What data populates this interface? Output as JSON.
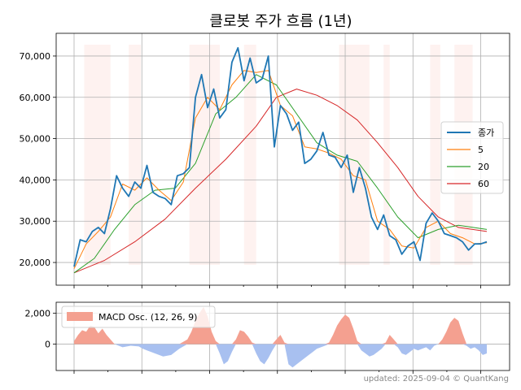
{
  "title": "클로봇 주가 흐름 (1년)",
  "footer": "updated: 2025-09-04 © QuantKang",
  "colors": {
    "close": "#1f77b4",
    "ma5": "#ff7f0e",
    "ma20": "#2ca02c",
    "ma60": "#d62728",
    "osc_pos": "#f4a090",
    "osc_neg": "#a8c0f0",
    "shade": "#fde8e4",
    "grid": "#b0b0b0"
  },
  "chart_data": [
    {
      "type": "line",
      "title": "클로봇 주가 흐름 (1년)",
      "ylim": [
        14500,
        75500
      ],
      "yticks": [
        20000,
        30000,
        40000,
        50000,
        60000,
        70000
      ],
      "ytick_labels": [
        "20,000",
        "30,000",
        "40,000",
        "50,000",
        "60,000",
        "70,000"
      ],
      "grid": true,
      "legend_position": "center-right",
      "shaded_x_ranges": [
        [
          5,
          18
        ],
        [
          27,
          33
        ],
        [
          57,
          72
        ],
        [
          84,
          90
        ],
        [
          131,
          146
        ],
        [
          153,
          156
        ],
        [
          176,
          181
        ],
        [
          188,
          197
        ]
      ],
      "series": [
        {
          "name": "종가",
          "key": "close",
          "x": [
            0,
            3,
            6,
            9,
            12,
            15,
            18,
            21,
            24,
            27,
            30,
            33,
            36,
            39,
            42,
            45,
            48,
            51,
            54,
            57,
            60,
            63,
            66,
            69,
            72,
            75,
            78,
            81,
            84,
            87,
            90,
            93,
            96,
            99,
            102,
            105,
            108,
            111,
            114,
            117,
            120,
            123,
            126,
            129,
            132,
            135,
            138,
            141,
            144,
            147,
            150,
            153,
            156,
            159,
            162,
            165,
            168,
            171,
            174,
            177,
            180,
            183,
            186,
            189,
            192,
            195,
            198,
            201,
            204
          ],
          "values": [
            19000,
            25500,
            25000,
            27500,
            28500,
            27000,
            33000,
            41000,
            38000,
            36000,
            39500,
            38000,
            43500,
            37000,
            36000,
            35500,
            34000,
            41000,
            41500,
            43000,
            60000,
            65500,
            57500,
            62000,
            55000,
            57000,
            68500,
            72000,
            64000,
            69500,
            63500,
            64500,
            70000,
            48000,
            58000,
            56000,
            52000,
            54000,
            44000,
            45000,
            47000,
            51500,
            46000,
            45500,
            43000,
            46000,
            37000,
            43000,
            38000,
            31000,
            28000,
            31500,
            26500,
            25500,
            22000,
            24000,
            25000,
            20500,
            29500,
            32000,
            30000,
            27000,
            26500,
            26000,
            25000,
            23000,
            24500,
            24500,
            25000
          ]
        },
        {
          "name": "5",
          "key": "ma5",
          "x": [
            0,
            6,
            12,
            18,
            24,
            30,
            36,
            42,
            48,
            54,
            60,
            66,
            72,
            78,
            84,
            90,
            96,
            102,
            108,
            114,
            120,
            126,
            132,
            138,
            144,
            150,
            156,
            162,
            168,
            174,
            180,
            186,
            192,
            198,
            204
          ],
          "values": [
            18500,
            24500,
            27500,
            31000,
            39000,
            37500,
            40500,
            37500,
            35000,
            39500,
            55000,
            60000,
            57000,
            63000,
            66500,
            66000,
            66500,
            58000,
            55500,
            48000,
            47500,
            46500,
            45000,
            41000,
            40000,
            30000,
            28000,
            24000,
            23500,
            28500,
            30000,
            27000,
            26000,
            24500,
            24800
          ]
        },
        {
          "name": "20",
          "key": "ma20",
          "x": [
            0,
            10,
            20,
            30,
            40,
            50,
            60,
            70,
            80,
            90,
            100,
            110,
            120,
            130,
            140,
            150,
            160,
            170,
            180,
            190,
            204
          ],
          "values": [
            17500,
            21000,
            28000,
            34000,
            37500,
            38000,
            44000,
            56000,
            60000,
            65500,
            63000,
            56000,
            49000,
            46000,
            44500,
            38000,
            31000,
            26000,
            28000,
            29000,
            28000
          ]
        },
        {
          "name": "60",
          "key": "ma60",
          "x": [
            0,
            15,
            30,
            45,
            60,
            75,
            90,
            100,
            110,
            120,
            130,
            140,
            150,
            160,
            170,
            180,
            190,
            204
          ],
          "values": [
            17500,
            20500,
            25000,
            30500,
            38000,
            45000,
            53000,
            60000,
            62000,
            60500,
            58000,
            54500,
            49000,
            43000,
            36000,
            31000,
            28500,
            27500
          ]
        }
      ]
    },
    {
      "type": "area",
      "ylim": [
        -1700,
        2700
      ],
      "yticks": [
        0,
        2000
      ],
      "ytick_labels": [
        "0",
        "2,000"
      ],
      "grid": true,
      "legend_position": "top-left",
      "series": [
        {
          "name": "MACD Osc. (12, 26, 9)",
          "key": "osc",
          "x": [
            0,
            2,
            4,
            6,
            8,
            10,
            12,
            14,
            16,
            18,
            20,
            24,
            28,
            32,
            34,
            36,
            40,
            44,
            48,
            52,
            56,
            58,
            60,
            62,
            64,
            66,
            68,
            70,
            72,
            74,
            76,
            78,
            80,
            82,
            84,
            86,
            88,
            90,
            92,
            94,
            96,
            98,
            100,
            102,
            104,
            106,
            108,
            110,
            112,
            114,
            116,
            118,
            120,
            122,
            124,
            126,
            128,
            130,
            132,
            134,
            136,
            138,
            140,
            142,
            144,
            146,
            148,
            150,
            152,
            154,
            156,
            158,
            160,
            162,
            164,
            166,
            168,
            170,
            172,
            174,
            176,
            178,
            180,
            182,
            184,
            186,
            188,
            190,
            192,
            194,
            196,
            198,
            200,
            202,
            204
          ],
          "values": [
            200,
            600,
            900,
            800,
            1200,
            1100,
            700,
            1000,
            600,
            300,
            0,
            -200,
            -100,
            -150,
            -300,
            -400,
            -600,
            -800,
            -700,
            -300,
            300,
            800,
            1500,
            2000,
            2400,
            1800,
            800,
            200,
            -600,
            -1300,
            -1100,
            -500,
            300,
            900,
            800,
            500,
            100,
            -600,
            -1100,
            -1300,
            -900,
            -400,
            300,
            600,
            100,
            -1300,
            -1500,
            -1300,
            -1100,
            -900,
            -700,
            -500,
            -300,
            -200,
            -100,
            100,
            600,
            1200,
            1600,
            1900,
            1700,
            1000,
            200,
            -400,
            -600,
            -800,
            -700,
            -500,
            -300,
            100,
            600,
            300,
            -200,
            -600,
            -700,
            -500,
            -300,
            -400,
            -300,
            -200,
            -400,
            -100,
            0,
            300,
            800,
            1400,
            1700,
            1500,
            700,
            -100,
            -300,
            -200,
            -400,
            -700,
            -600
          ]
        }
      ]
    }
  ]
}
